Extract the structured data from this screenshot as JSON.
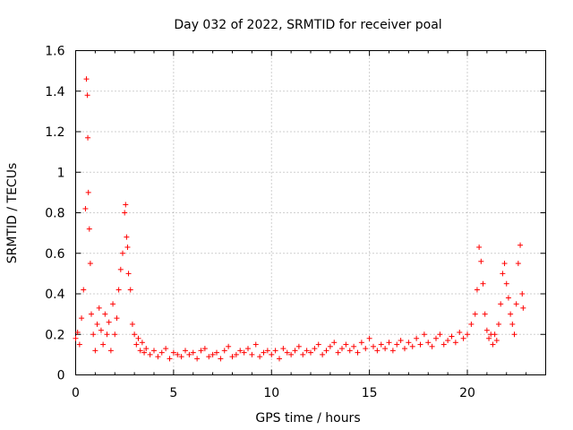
{
  "chart_data": {
    "type": "scatter",
    "title": "Day 032 of 2022, SRMTID for receiver poal",
    "xlabel": "GPS time / hours",
    "ylabel": "SRMTID / TECUs",
    "xlim": [
      0,
      24
    ],
    "ylim": [
      0,
      1.6
    ],
    "x_ticks": [
      0,
      5,
      10,
      15,
      20
    ],
    "x_tick_labels": [
      "0",
      "5",
      "10",
      "15",
      "20"
    ],
    "y_ticks": [
      0,
      0.2,
      0.4,
      0.6,
      0.8,
      1.0,
      1.2,
      1.4,
      1.6
    ],
    "y_tick_labels": [
      "0",
      "0.2",
      "0.4",
      "0.6",
      "0.8",
      "1",
      "1.2",
      "1.4",
      "1.6"
    ],
    "grid": true,
    "marker": "plus",
    "series": [
      {
        "name": "SRMTID",
        "color": "#ff0000",
        "x": [
          0.0,
          0.1,
          0.2,
          0.3,
          0.4,
          0.5,
          0.55,
          0.6,
          0.62,
          0.65,
          0.7,
          0.75,
          0.8,
          0.9,
          1.0,
          1.1,
          1.2,
          1.3,
          1.4,
          1.5,
          1.6,
          1.7,
          1.8,
          1.9,
          2.0,
          2.1,
          2.2,
          2.3,
          2.4,
          2.5,
          2.55,
          2.6,
          2.65,
          2.7,
          2.8,
          2.9,
          3.0,
          3.1,
          3.2,
          3.3,
          3.4,
          3.5,
          3.6,
          3.8,
          4.0,
          4.2,
          4.4,
          4.6,
          4.8,
          5.0,
          5.2,
          5.4,
          5.6,
          5.8,
          6.0,
          6.2,
          6.4,
          6.6,
          6.8,
          7.0,
          7.2,
          7.4,
          7.6,
          7.8,
          8.0,
          8.2,
          8.4,
          8.6,
          8.8,
          9.0,
          9.2,
          9.4,
          9.6,
          9.8,
          10.0,
          10.2,
          10.4,
          10.6,
          10.8,
          11.0,
          11.2,
          11.4,
          11.6,
          11.8,
          12.0,
          12.2,
          12.4,
          12.6,
          12.8,
          13.0,
          13.2,
          13.4,
          13.6,
          13.8,
          14.0,
          14.2,
          14.4,
          14.6,
          14.8,
          15.0,
          15.2,
          15.4,
          15.6,
          15.8,
          16.0,
          16.2,
          16.4,
          16.6,
          16.8,
          17.0,
          17.2,
          17.4,
          17.6,
          17.8,
          18.0,
          18.2,
          18.4,
          18.6,
          18.8,
          19.0,
          19.2,
          19.4,
          19.6,
          19.8,
          20.0,
          20.2,
          20.4,
          20.5,
          20.6,
          20.7,
          20.8,
          20.9,
          21.0,
          21.1,
          21.2,
          21.3,
          21.4,
          21.5,
          21.6,
          21.7,
          21.8,
          21.9,
          22.0,
          22.1,
          22.2,
          22.3,
          22.4,
          22.5,
          22.6,
          22.7,
          22.8,
          22.85
        ],
        "y": [
          0.18,
          0.21,
          0.15,
          0.28,
          0.42,
          0.82,
          1.46,
          1.38,
          1.17,
          0.9,
          0.72,
          0.55,
          0.3,
          0.2,
          0.12,
          0.25,
          0.33,
          0.22,
          0.15,
          0.3,
          0.2,
          0.26,
          0.12,
          0.35,
          0.2,
          0.28,
          0.42,
          0.52,
          0.6,
          0.8,
          0.84,
          0.68,
          0.63,
          0.5,
          0.42,
          0.25,
          0.2,
          0.15,
          0.18,
          0.12,
          0.16,
          0.11,
          0.13,
          0.1,
          0.12,
          0.09,
          0.11,
          0.13,
          0.08,
          0.11,
          0.1,
          0.09,
          0.12,
          0.1,
          0.11,
          0.08,
          0.12,
          0.13,
          0.09,
          0.1,
          0.11,
          0.08,
          0.12,
          0.14,
          0.09,
          0.1,
          0.12,
          0.11,
          0.13,
          0.1,
          0.15,
          0.09,
          0.11,
          0.12,
          0.1,
          0.12,
          0.08,
          0.13,
          0.11,
          0.1,
          0.12,
          0.14,
          0.1,
          0.12,
          0.11,
          0.13,
          0.15,
          0.1,
          0.12,
          0.14,
          0.16,
          0.11,
          0.13,
          0.15,
          0.12,
          0.14,
          0.11,
          0.16,
          0.13,
          0.18,
          0.14,
          0.12,
          0.15,
          0.13,
          0.16,
          0.12,
          0.15,
          0.17,
          0.13,
          0.16,
          0.14,
          0.18,
          0.15,
          0.2,
          0.16,
          0.14,
          0.18,
          0.2,
          0.15,
          0.17,
          0.19,
          0.16,
          0.21,
          0.18,
          0.2,
          0.25,
          0.3,
          0.42,
          0.63,
          0.56,
          0.45,
          0.3,
          0.22,
          0.18,
          0.2,
          0.15,
          0.2,
          0.17,
          0.25,
          0.35,
          0.5,
          0.55,
          0.45,
          0.38,
          0.3,
          0.25,
          0.2,
          0.35,
          0.55,
          0.64,
          0.4,
          0.33
        ]
      }
    ]
  }
}
